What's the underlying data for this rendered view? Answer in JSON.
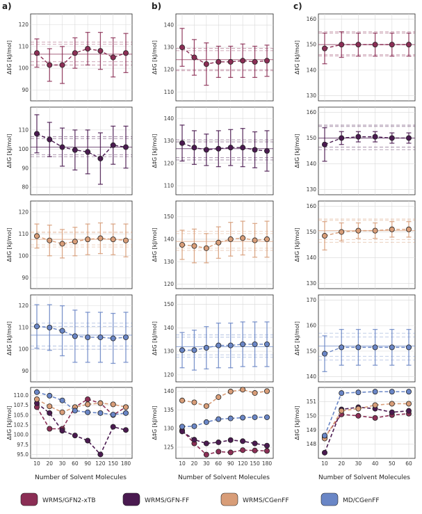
{
  "figure": {
    "panel_labels": [
      "a)",
      "b)",
      "c)"
    ],
    "ylabel": "Δ‡G [kJ/mol]",
    "xlabel": "Number of Solvent Molecules",
    "legend": [
      {
        "name": "WRMS/GFN2-xTB",
        "color": "#8b2e55"
      },
      {
        "name": "WRMS/GFN-FF",
        "color": "#4a1a50"
      },
      {
        "name": "WRMS/CGenFF",
        "color": "#d89d78"
      },
      {
        "name": "MD/CGenFF",
        "color": "#6a86c6"
      }
    ]
  },
  "chart_data": {
    "type": "line",
    "note": "Grid of 5 rows x 3 columns. Rows 1-4: single series with error bars, reference line and dashed band. Row 5: all four series overlaid.",
    "columns": [
      {
        "label": "a)",
        "x": [
          10,
          20,
          30,
          60,
          90,
          120,
          150,
          180
        ],
        "series": [
          {
            "name": "WRMS/GFN2-xTB",
            "color": "#8b2e55",
            "values": [
              107.0,
              101.5,
              101.5,
              107.0,
              109.0,
              108.0,
              105.0,
              107.0
            ],
            "errors": [
              6.5,
              7.5,
              8.5,
              7.0,
              7.5,
              8.5,
              9.0,
              9.0
            ],
            "ylim": [
              85,
              125
            ],
            "yticks": [
              90,
              100,
              110,
              120
            ],
            "ref": 106.5,
            "band": [
              103.0,
              111.0,
              101.5,
              112.0
            ]
          },
          {
            "name": "WRMS/GFN-FF",
            "color": "#4a1a50",
            "values": [
              108.0,
              105.0,
              101.0,
              99.5,
              98.5,
              95.0,
              102.0,
              101.0
            ],
            "errors": [
              10.0,
              9.0,
              10.0,
              10.5,
              11.5,
              13.5,
              10.0,
              11.0
            ],
            "ylim": [
              76,
              122
            ],
            "yticks": [
              80,
              90,
              100,
              110
            ],
            "ref": 101.0,
            "band": [
              97.0,
              105.5,
              96.0,
              106.5
            ]
          },
          {
            "name": "WRMS/CGenFF",
            "color": "#d89d78",
            "values": [
              109.0,
              107.0,
              105.5,
              106.5,
              107.5,
              108.0,
              107.5,
              107.0
            ],
            "errors": [
              5.5,
              7.0,
              6.5,
              6.5,
              7.0,
              7.0,
              7.0,
              7.5
            ],
            "ylim": [
              85,
              125
            ],
            "yticks": [
              90,
              100,
              110,
              120
            ],
            "ref": 107.5,
            "band": [
              105.0,
              110.5,
              104.0,
              111.0
            ]
          },
          {
            "name": "MD/CGenFF",
            "color": "#6a86c6",
            "values": [
              110.5,
              110.0,
              108.5,
              106.0,
              105.5,
              105.5,
              105.0,
              105.5
            ],
            "errors": [
              10.0,
              10.5,
              11.5,
              12.0,
              11.5,
              11.5,
              11.5,
              11.5
            ],
            "ylim": [
              85,
              125
            ],
            "yticks": [
              90,
              100,
              110,
              120
            ],
            "ref": 106.5,
            "band": [
              101.5,
              110.5,
              100.0,
              112.0
            ]
          },
          {
            "name": "combined",
            "ylim": [
              94,
              112
            ],
            "yticks": [
              95.0,
              97.5,
              100.0,
              102.5,
              105.0,
              107.5,
              110.0
            ],
            "lines": [
              {
                "name": "WRMS/GFN2-xTB",
                "color": "#8b2e55",
                "values": [
                  107.0,
                  101.5,
                  101.5,
                  107.0,
                  109.0,
                  108.0,
                  105.0,
                  107.0
                ]
              },
              {
                "name": "WRMS/GFN-FF",
                "color": "#4a1a50",
                "values": [
                  108.0,
                  105.5,
                  101.0,
                  99.8,
                  98.5,
                  95.0,
                  102.0,
                  101.2
                ]
              },
              {
                "name": "WRMS/CGenFF",
                "color": "#d89d78",
                "values": [
                  109.0,
                  107.2,
                  105.7,
                  107.0,
                  107.7,
                  108.0,
                  107.7,
                  107.0
                ]
              },
              {
                "name": "MD/CGenFF",
                "color": "#6a86c6",
                "values": [
                  110.8,
                  109.9,
                  108.7,
                  106.1,
                  105.7,
                  105.5,
                  105.1,
                  105.5
                ]
              }
            ]
          }
        ]
      },
      {
        "label": "b)",
        "x": [
          10,
          20,
          30,
          60,
          90,
          120,
          150,
          180
        ],
        "series": [
          {
            "name": "WRMS/GFN2-xTB",
            "color": "#8b2e55",
            "values": [
              130.0,
              125.5,
              122.5,
              123.5,
              123.5,
              124.0,
              123.5,
              124.0
            ],
            "errors": [
              8.5,
              8.0,
              9.5,
              7.0,
              7.0,
              7.5,
              7.0,
              7.0
            ],
            "ylim": [
              106,
              145
            ],
            "yticks": [
              110,
              120,
              130,
              140
            ],
            "ref": 124.5,
            "band": [
              120.0,
              128.5,
              119.5,
              129.5
            ]
          },
          {
            "name": "WRMS/GFN-FF",
            "color": "#4a1a50",
            "values": [
              129.0,
              127.0,
              126.0,
              126.5,
              127.0,
              127.0,
              126.0,
              125.5
            ],
            "errors": [
              8.0,
              7.5,
              7.0,
              8.0,
              8.0,
              8.5,
              8.0,
              9.0
            ],
            "ylim": [
              106,
              145
            ],
            "yticks": [
              110,
              120,
              130,
              140
            ],
            "ref": 126.5,
            "band": [
              122.5,
              129.5,
              121.5,
              130.5
            ]
          },
          {
            "name": "WRMS/CGenFF",
            "color": "#d89d78",
            "values": [
              137.5,
              137.0,
              136.0,
              138.5,
              140.0,
              140.5,
              139.5,
              140.0
            ],
            "errors": [
              6.5,
              7.5,
              6.5,
              7.0,
              7.5,
              7.5,
              7.5,
              8.0
            ],
            "ylim": [
              118,
              157
            ],
            "yticks": [
              120,
              130,
              140,
              150
            ],
            "ref": 139.0,
            "band": [
              136.0,
              142.5,
              135.0,
              143.5
            ]
          },
          {
            "name": "MD/CGenFF",
            "color": "#6a86c6",
            "values": [
              130.5,
              130.5,
              131.5,
              132.5,
              132.5,
              133.0,
              133.0,
              133.0
            ],
            "errors": [
              7.5,
              8.5,
              9.0,
              9.5,
              9.5,
              9.5,
              9.5,
              9.5
            ],
            "ylim": [
              117,
              154
            ],
            "yticks": [
              120,
              130,
              140,
              150
            ],
            "ref": 132.0,
            "band": [
              128.5,
              136.0,
              127.5,
              137.0
            ]
          },
          {
            "name": "combined",
            "ylim": [
              122,
              141
            ],
            "yticks": [
              125,
              130,
              135,
              140
            ],
            "lines": [
              {
                "name": "WRMS/GFN2-xTB",
                "color": "#8b2e55",
                "values": [
                  129.5,
                  126.0,
                  123.0,
                  123.8,
                  123.6,
                  124.2,
                  124.1,
                  124.0
                ]
              },
              {
                "name": "WRMS/GFN-FF",
                "color": "#4a1a50",
                "values": [
                  129.2,
                  127.0,
                  126.0,
                  126.3,
                  126.9,
                  126.6,
                  126.0,
                  125.4
                ]
              },
              {
                "name": "WRMS/CGenFF",
                "color": "#d89d78",
                "values": [
                  137.5,
                  137.0,
                  136.0,
                  138.4,
                  139.9,
                  140.4,
                  139.5,
                  140.0
                ]
              },
              {
                "name": "MD/CGenFF",
                "color": "#6a86c6",
                "values": [
                  130.5,
                  130.6,
                  131.7,
                  132.5,
                  132.7,
                  132.9,
                  133.0,
                  133.0
                ]
              }
            ]
          }
        ]
      },
      {
        "label": "c)",
        "x": [
          10,
          20,
          30,
          40,
          50,
          60
        ],
        "series": [
          {
            "name": "WRMS/GFN2-xTB",
            "color": "#8b2e55",
            "values": [
              148.5,
              150.0,
              150.0,
              150.0,
              150.0,
              150.0
            ],
            "errors": [
              6.0,
              5.0,
              4.5,
              4.5,
              4.5,
              4.5
            ],
            "ylim": [
              128,
              162
            ],
            "yticks": [
              130,
              140,
              150,
              160
            ],
            "ref": 150.0,
            "band": [
              146.0,
              154.5,
              145.5,
              155.0
            ]
          },
          {
            "name": "WRMS/GFN-FF",
            "color": "#4a1a50",
            "values": [
              147.5,
              150.0,
              150.5,
              150.5,
              150.0,
              150.0
            ],
            "errors": [
              6.5,
              2.5,
              2.0,
              2.0,
              2.0,
              2.0
            ],
            "ylim": [
              128,
              162
            ],
            "yticks": [
              130,
              140,
              150,
              160
            ],
            "ref": 150.0,
            "band": [
              146.5,
              154.5,
              145.5,
              155.0
            ]
          },
          {
            "name": "WRMS/CGenFF",
            "color": "#d89d78",
            "values": [
              148.5,
              150.0,
              150.5,
              150.5,
              151.0,
              151.0
            ],
            "errors": [
              5.5,
              3.5,
              3.0,
              3.0,
              3.0,
              3.0
            ],
            "ylim": [
              128,
              162
            ],
            "yticks": [
              130,
              140,
              150,
              160
            ],
            "ref": 150.5,
            "band": [
              147.0,
              154.5,
              146.0,
              155.0
            ]
          },
          {
            "name": "MD/CGenFF",
            "color": "#6a86c6",
            "values": [
              149.0,
              151.5,
              151.5,
              151.5,
              151.5,
              151.5
            ],
            "errors": [
              7.0,
              7.0,
              7.0,
              7.0,
              7.0,
              7.0
            ],
            "ylim": [
              138,
              172
            ],
            "yticks": [
              140,
              150,
              160,
              170
            ],
            "ref": 152.0,
            "band": [
              148.0,
              155.5,
              146.5,
              157.0
            ]
          },
          {
            "name": "combined",
            "ylim": [
              147,
              152
            ],
            "yticks": [
              148,
              149,
              150,
              151
            ],
            "lines": [
              {
                "name": "WRMS/GFN2-xTB",
                "color": "#8b2e55",
                "values": [
                  148.5,
                  150.1,
                  150.0,
                  149.85,
                  150.05,
                  150.15
                ]
              },
              {
                "name": "WRMS/GFN-FF",
                "color": "#4a1a50",
                "values": [
                  147.4,
                  150.45,
                  150.6,
                  150.5,
                  150.25,
                  150.35
                ]
              },
              {
                "name": "WRMS/CGenFF",
                "color": "#d89d78",
                "values": [
                  148.4,
                  150.35,
                  150.5,
                  150.75,
                  150.85,
                  150.85
                ]
              },
              {
                "name": "MD/CGenFF",
                "color": "#6a86c6",
                "values": [
                  148.6,
                  151.6,
                  151.65,
                  151.7,
                  151.7,
                  151.7
                ]
              }
            ]
          }
        ]
      }
    ]
  }
}
